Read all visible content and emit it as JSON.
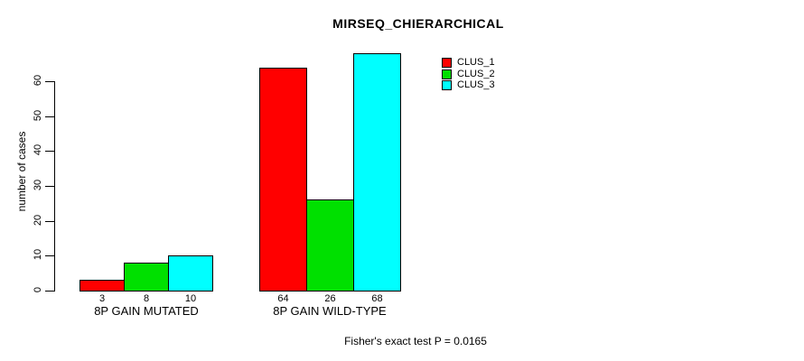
{
  "chart_data": {
    "type": "bar",
    "title": "MIRSEQ_CHIERARCHICAL",
    "categories": [
      "8P GAIN MUTATED",
      "8P GAIN WILD-TYPE"
    ],
    "series": [
      {
        "name": "CLUS_1",
        "color": "#ff0000",
        "values": [
          3,
          64
        ]
      },
      {
        "name": "CLUS_2",
        "color": "#00e000",
        "values": [
          8,
          26
        ]
      },
      {
        "name": "CLUS_3",
        "color": "#00ffff",
        "values": [
          10,
          68
        ]
      }
    ],
    "ylabel": "number of cases",
    "xlabel": "",
    "ylim": [
      0,
      60
    ],
    "yticks": [
      0,
      10,
      20,
      30,
      40,
      50,
      60
    ],
    "grid": false,
    "legend_position": "top-right",
    "bar_value_labels_shown": true,
    "annotation": "Fisher's exact test P = 0.0165"
  }
}
